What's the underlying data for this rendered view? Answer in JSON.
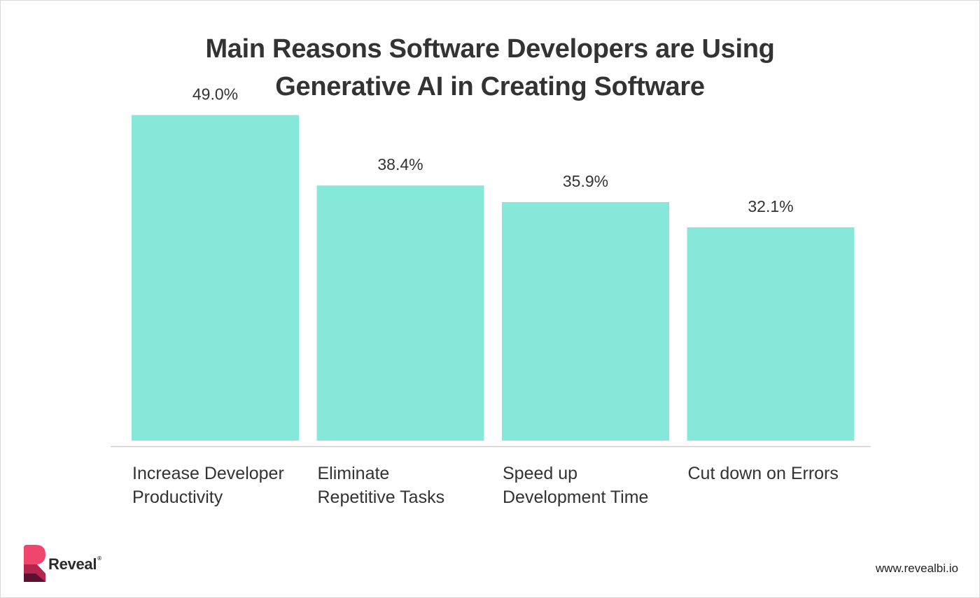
{
  "chart_data": {
    "type": "bar",
    "title_lines": [
      "Main Reasons Software Developers are Using",
      "Generative AI in Creating Software"
    ],
    "categories": [
      [
        "Increase Developer",
        "Productivity"
      ],
      [
        "Eliminate",
        "Repetitive Tasks"
      ],
      [
        "Speed up",
        "Development Time"
      ],
      [
        "Cut down on Errors"
      ]
    ],
    "values": [
      49.0,
      38.4,
      35.9,
      32.1
    ],
    "value_labels": [
      "49.0%",
      "38.4%",
      "35.9%",
      "32.1%"
    ],
    "xlabel": "",
    "ylabel": "",
    "ylim": [
      0,
      50
    ],
    "grid": false,
    "bar_color": "#86e8d9",
    "axis_color": "#cccccc"
  },
  "branding": {
    "logo_text": "Reveal",
    "logo_tm": "®",
    "website": "www.revealbi.io",
    "logo_colors": [
      "#f0466e",
      "#b5264f",
      "#5e1030"
    ]
  }
}
